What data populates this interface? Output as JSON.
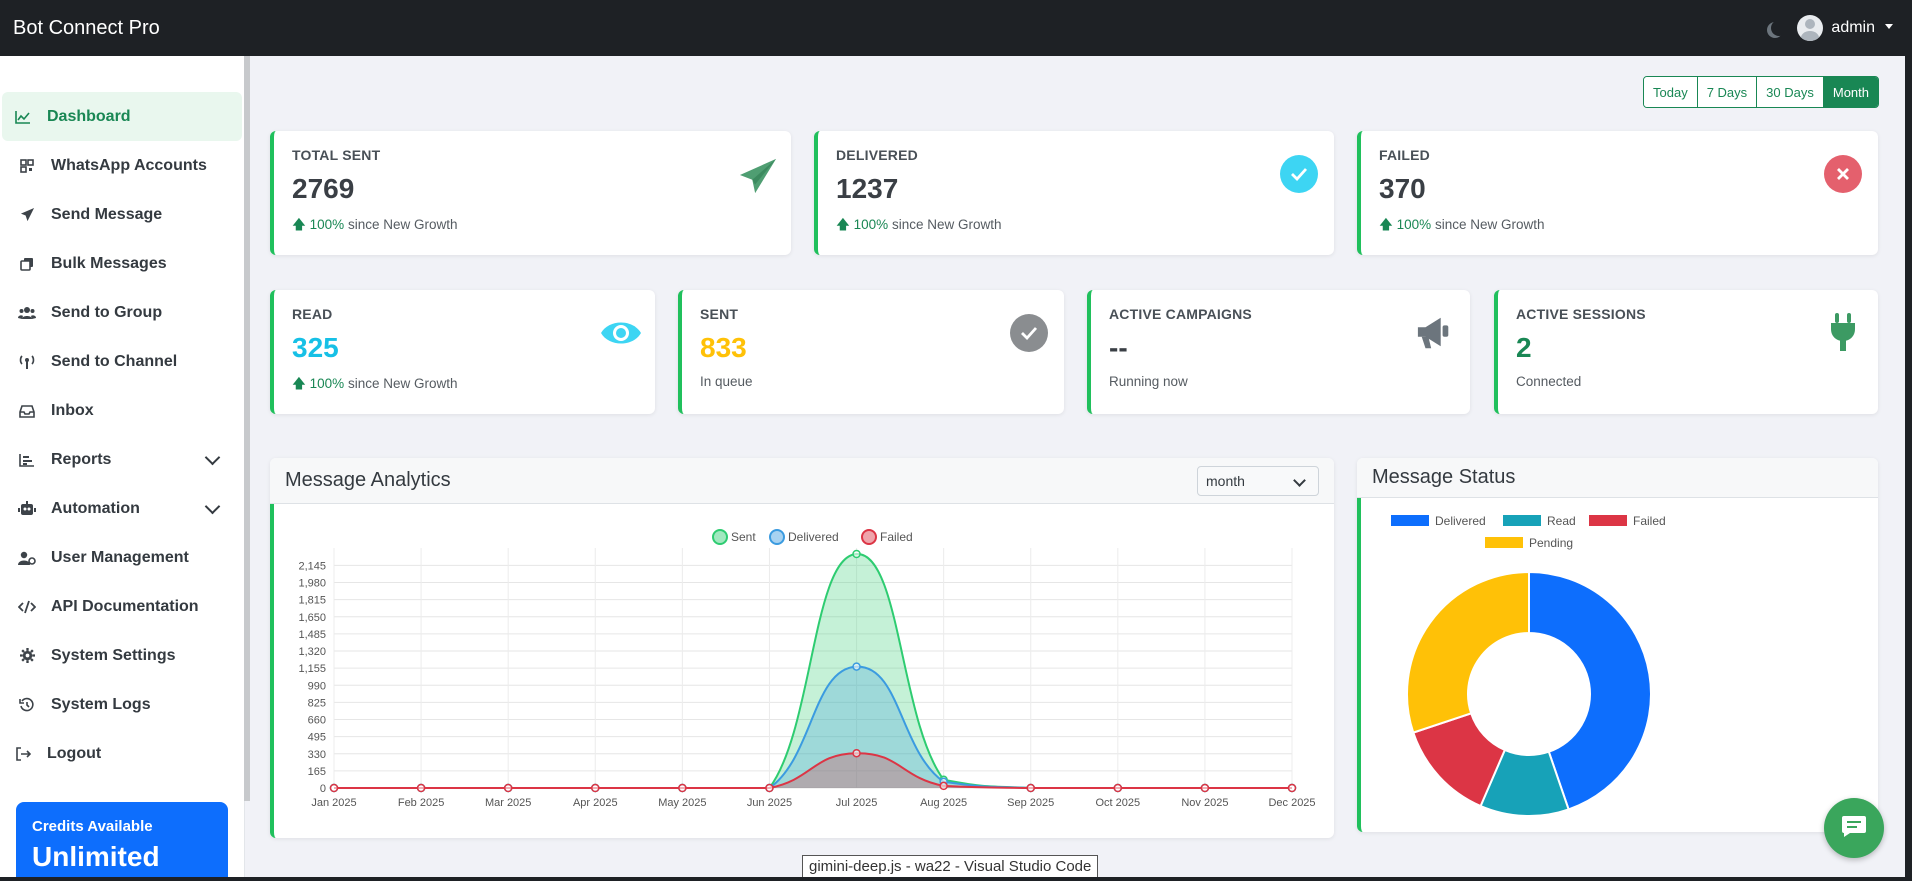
{
  "app": {
    "brand": "Bot Connect Pro",
    "user": "admin"
  },
  "sidebar": {
    "items": [
      {
        "label": "Dashboard",
        "icon": "chart-line-icon",
        "active": true
      },
      {
        "label": "WhatsApp Accounts",
        "icon": "qrcode-icon"
      },
      {
        "label": "Send Message",
        "icon": "paper-plane-icon"
      },
      {
        "label": "Bulk Messages",
        "icon": "copy-icon"
      },
      {
        "label": "Send to Group",
        "icon": "users-icon"
      },
      {
        "label": "Send to Channel",
        "icon": "broadcast-icon"
      },
      {
        "label": "Inbox",
        "icon": "inbox-icon"
      },
      {
        "label": "Reports",
        "icon": "bar-chart-icon",
        "expandable": true
      },
      {
        "label": "Automation",
        "icon": "robot-icon",
        "expandable": true
      },
      {
        "label": "User Management",
        "icon": "user-gear-icon"
      },
      {
        "label": "API Documentation",
        "icon": "code-icon"
      },
      {
        "label": "System Settings",
        "icon": "gear-icon"
      },
      {
        "label": "System Logs",
        "icon": "history-icon"
      },
      {
        "label": "Logout",
        "icon": "logout-icon"
      }
    ],
    "credits": {
      "title": "Credits Available",
      "value": "Unlimited"
    }
  },
  "ranges": {
    "today": "Today",
    "d7": "7 Days",
    "d30": "30 Days",
    "month": "Month",
    "selected": "Month"
  },
  "stats": {
    "total_sent": {
      "label": "TOTAL SENT",
      "value": "2769",
      "pct": "100%",
      "note": " since New Growth"
    },
    "delivered": {
      "label": "DELIVERED",
      "value": "1237",
      "pct": "100%",
      "note": " since New Growth"
    },
    "failed": {
      "label": "FAILED",
      "value": "370",
      "pct": "100%",
      "note": " since New Growth"
    },
    "read": {
      "label": "READ",
      "value": "325",
      "pct": "100%",
      "note": " since New Growth"
    },
    "sent": {
      "label": "SENT",
      "value": "833",
      "note": "In queue"
    },
    "campaigns": {
      "label": "ACTIVE CAMPAIGNS",
      "value": "--",
      "note": "Running now"
    },
    "sessions": {
      "label": "ACTIVE SESSIONS",
      "value": "2",
      "note": "Connected"
    }
  },
  "analytics": {
    "title": "Message Analytics",
    "period": "month"
  },
  "status_panel": {
    "title": "Message Status"
  },
  "colors": {
    "accent": "#20c05c",
    "sent": "#2ecc71",
    "delivered": "#3b9be0",
    "failed": "#dc3545",
    "read": "#17a2b8",
    "pending": "#ffc107",
    "blue": "#0d6efd"
  },
  "chart_data": [
    {
      "type": "area",
      "title": "Message Analytics",
      "categories": [
        "Jan 2025",
        "Feb 2025",
        "Mar 2025",
        "Apr 2025",
        "May 2025",
        "Jun 2025",
        "Jul 2025",
        "Aug 2025",
        "Sep 2025",
        "Oct 2025",
        "Nov 2025",
        "Dec 2025"
      ],
      "series": [
        {
          "name": "Sent",
          "values": [
            0,
            0,
            0,
            0,
            0,
            0,
            2255,
            80,
            0,
            0,
            0,
            0
          ]
        },
        {
          "name": "Delivered",
          "values": [
            0,
            0,
            0,
            0,
            0,
            0,
            1170,
            60,
            0,
            0,
            0,
            0
          ]
        },
        {
          "name": "Failed",
          "values": [
            0,
            0,
            0,
            0,
            0,
            0,
            335,
            20,
            0,
            0,
            0,
            0
          ]
        }
      ],
      "yticks": [
        0,
        165,
        330,
        495,
        660,
        825,
        990,
        1155,
        1320,
        1485,
        1650,
        1815,
        1980,
        2145
      ],
      "ylim": [
        0,
        2255
      ],
      "legend": "top"
    },
    {
      "type": "pie",
      "title": "Message Status",
      "labels": [
        "Delivered",
        "Read",
        "Failed",
        "Pending"
      ],
      "values": [
        1237,
        325,
        370,
        833
      ],
      "legend": "top"
    }
  ],
  "tooltip": "gimini-deep.js - wa22 - Visual Studio Code"
}
